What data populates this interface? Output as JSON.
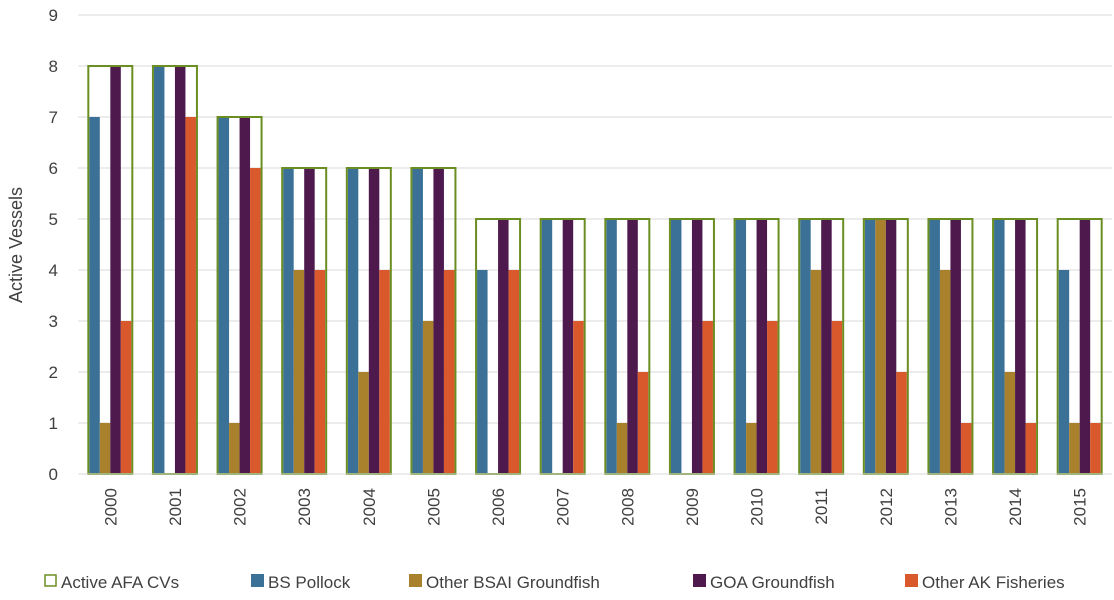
{
  "chart_data": {
    "type": "bar",
    "title": "",
    "xlabel": "",
    "ylabel": "Active Vessels",
    "ylim": [
      0,
      9
    ],
    "yticks": [
      0,
      1,
      2,
      3,
      4,
      5,
      6,
      7,
      8,
      9
    ],
    "grid": true,
    "legend_position": "bottom",
    "categories": [
      "2000",
      "2001",
      "2002",
      "2003",
      "2004",
      "2005",
      "2006",
      "2007",
      "2008",
      "2009",
      "2010",
      "2011",
      "2012",
      "2013",
      "2014",
      "2015"
    ],
    "outline_series": {
      "name": "Active AFA CVs",
      "color": "#6b8e23",
      "values": [
        8,
        8,
        7,
        6,
        6,
        6,
        5,
        5,
        5,
        5,
        5,
        5,
        5,
        5,
        5,
        5
      ]
    },
    "series": [
      {
        "name": "BS Pollock",
        "color": "#3b7196",
        "values": [
          7,
          8,
          7,
          6,
          6,
          6,
          4,
          5,
          5,
          5,
          5,
          5,
          5,
          5,
          5,
          4
        ]
      },
      {
        "name": "Other BSAI Groundfish",
        "color": "#a9812c",
        "values": [
          1,
          0,
          1,
          4,
          2,
          3,
          0,
          0,
          1,
          0,
          1,
          4,
          5,
          4,
          2,
          1
        ]
      },
      {
        "name": "GOA Groundfish",
        "color": "#4e1a4e",
        "values": [
          8,
          8,
          7,
          6,
          6,
          6,
          5,
          5,
          5,
          5,
          5,
          5,
          5,
          5,
          5,
          5
        ]
      },
      {
        "name": "Other AK Fisheries",
        "color": "#d9582c",
        "values": [
          3,
          7,
          6,
          4,
          4,
          4,
          4,
          3,
          2,
          3,
          3,
          3,
          2,
          1,
          1,
          1
        ]
      }
    ]
  }
}
